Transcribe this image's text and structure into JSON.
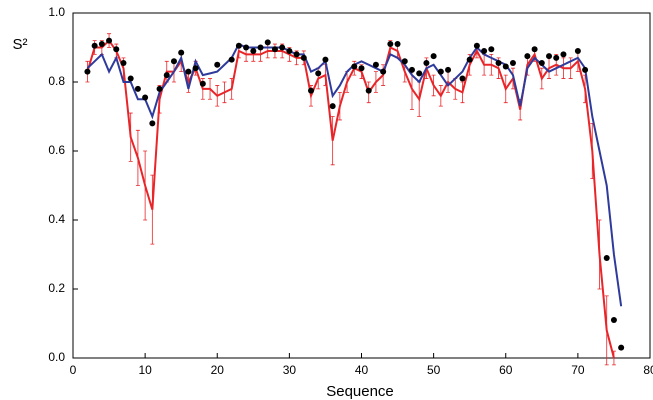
{
  "chart_data": {
    "type": "line",
    "x_label": "Sequence",
    "y_label": "S²",
    "x": [
      2,
      3,
      4,
      5,
      6,
      7,
      8,
      9,
      10,
      11,
      12,
      13,
      14,
      15,
      16,
      17,
      18,
      19,
      20,
      21,
      22,
      23,
      24,
      25,
      26,
      27,
      28,
      29,
      30,
      31,
      32,
      33,
      34,
      35,
      36,
      37,
      38,
      39,
      40,
      41,
      42,
      43,
      44,
      45,
      46,
      47,
      48,
      49,
      50,
      51,
      52,
      53,
      54,
      55,
      56,
      57,
      58,
      59,
      60,
      61,
      62,
      63,
      64,
      65,
      66,
      67,
      68,
      69,
      70,
      71,
      72,
      73,
      74,
      75,
      76
    ],
    "series": [
      {
        "marker": "point",
        "color": "#000000",
        "values": [
          0.83,
          0.905,
          0.91,
          0.92,
          0.895,
          0.855,
          0.81,
          0.78,
          0.755,
          0.68,
          0.78,
          0.82,
          0.86,
          0.885,
          0.83,
          0.84,
          0.795,
          null,
          0.85,
          null,
          0.865,
          0.905,
          0.9,
          0.89,
          0.9,
          0.915,
          0.895,
          0.9,
          0.89,
          0.88,
          0.87,
          0.775,
          0.825,
          0.865,
          0.73,
          null,
          null,
          0.845,
          0.84,
          0.775,
          0.85,
          0.83,
          0.91,
          0.91,
          0.86,
          0.835,
          0.825,
          0.855,
          0.875,
          0.83,
          0.835,
          null,
          0.81,
          0.865,
          0.905,
          0.89,
          0.895,
          0.855,
          0.845,
          0.855,
          null,
          0.875,
          0.895,
          0.855,
          0.875,
          0.87,
          0.88,
          null,
          0.89,
          0.835,
          null,
          null,
          0.29,
          0.11,
          0.03
        ]
      },
      {
        "marker": "line",
        "color": "#e8262a",
        "values": [
          0.83,
          0.9,
          0.9,
          0.92,
          0.89,
          0.84,
          0.64,
          0.58,
          0.5,
          0.43,
          0.75,
          0.83,
          0.83,
          0.86,
          0.8,
          0.84,
          0.78,
          0.78,
          0.76,
          0.77,
          0.78,
          0.89,
          0.88,
          0.88,
          0.88,
          0.89,
          0.89,
          0.89,
          0.88,
          0.87,
          0.87,
          0.76,
          0.81,
          0.82,
          0.63,
          0.73,
          0.8,
          0.84,
          0.83,
          0.77,
          0.8,
          0.82,
          0.9,
          0.89,
          0.83,
          0.78,
          0.75,
          0.84,
          0.79,
          0.76,
          0.8,
          0.78,
          0.77,
          0.85,
          0.89,
          0.85,
          0.85,
          0.84,
          0.78,
          0.81,
          0.72,
          0.85,
          0.88,
          0.81,
          0.84,
          0.85,
          0.84,
          0.84,
          0.86,
          0.78,
          0.6,
          0.3,
          0.08,
          0.0,
          null
        ],
        "errors": [
          0.03,
          0.02,
          0.02,
          0.02,
          0.02,
          0.03,
          0.07,
          0.08,
          0.1,
          0.1,
          0.04,
          0.03,
          0.03,
          0.03,
          0.03,
          0.02,
          0.03,
          0.03,
          0.03,
          0.03,
          0.03,
          0.02,
          0.02,
          0.02,
          0.02,
          0.02,
          0.02,
          0.02,
          0.02,
          0.02,
          0.02,
          0.03,
          0.03,
          0.03,
          0.07,
          0.04,
          0.03,
          0.02,
          0.02,
          0.03,
          0.03,
          0.03,
          0.02,
          0.02,
          0.03,
          0.06,
          0.05,
          0.03,
          0.03,
          0.03,
          0.03,
          0.03,
          0.03,
          0.03,
          0.02,
          0.03,
          0.03,
          0.03,
          0.04,
          0.03,
          0.03,
          0.03,
          0.02,
          0.03,
          0.03,
          0.03,
          0.03,
          0.03,
          0.03,
          0.04,
          0.08,
          0.1,
          0.1,
          0.02,
          null
        ]
      },
      {
        "marker": "line",
        "color": "#2f3b9c",
        "values": [
          0.84,
          0.86,
          0.88,
          0.83,
          0.87,
          0.8,
          0.8,
          0.75,
          0.75,
          0.7,
          0.77,
          0.8,
          0.83,
          0.87,
          0.78,
          0.86,
          0.82,
          0.825,
          0.83,
          0.85,
          0.87,
          0.91,
          0.9,
          0.9,
          0.9,
          0.9,
          0.9,
          0.9,
          0.89,
          0.88,
          0.88,
          0.83,
          0.84,
          0.86,
          0.76,
          0.79,
          0.83,
          0.85,
          0.86,
          0.85,
          0.84,
          0.83,
          0.88,
          0.87,
          0.85,
          0.82,
          0.8,
          0.84,
          0.85,
          0.82,
          0.79,
          0.81,
          0.83,
          0.87,
          0.9,
          0.88,
          0.87,
          0.86,
          0.85,
          0.82,
          0.73,
          0.84,
          0.87,
          0.85,
          0.83,
          0.84,
          0.85,
          0.86,
          0.87,
          0.84,
          0.7,
          0.6,
          0.5,
          0.3,
          0.15
        ]
      }
    ],
    "xlim": [
      0,
      80
    ],
    "xticks": [
      0,
      10,
      20,
      30,
      40,
      50,
      60,
      70,
      80
    ],
    "ylim": [
      0,
      1
    ],
    "yticks": [
      {
        "value": 0,
        "label": "0.0"
      },
      0.2,
      0.4,
      0.6,
      0.8,
      {
        "value": 1,
        "label": "1.0"
      }
    ]
  }
}
